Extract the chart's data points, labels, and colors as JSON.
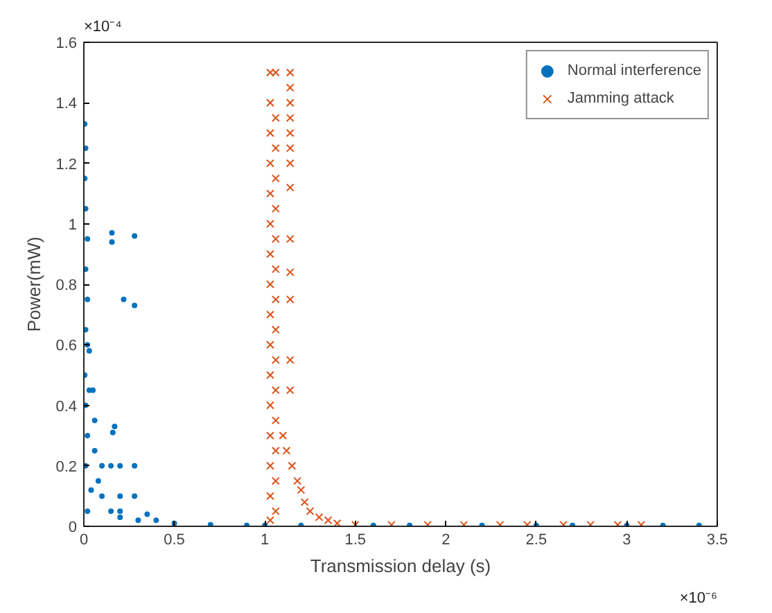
{
  "chart_data": {
    "type": "scatter",
    "xlabel": "Transmission delay (s)",
    "ylabel": "Power(mW)",
    "annotations": [
      "×10⁻⁶",
      "×10⁻⁴"
    ],
    "xlim": [
      0,
      3.5
    ],
    "ylim": [
      0,
      1.6
    ],
    "xticks": [
      0,
      0.5,
      1,
      1.5,
      2,
      2.5,
      3,
      3.5
    ],
    "yticks": [
      0,
      0.2,
      0.4,
      0.6,
      0.8,
      1,
      1.2,
      1.4,
      1.6
    ],
    "grid": false,
    "legend": "top right",
    "series": [
      {
        "name": "Normal interference",
        "color": "#0072bd",
        "marker": "circle",
        "x": [
          0.005,
          0.01,
          0.005,
          0.01,
          0.02,
          0.01,
          0.02,
          0.01,
          0.02,
          0.03,
          0.005,
          0.01,
          0.03,
          0.05,
          0.06,
          0.06,
          0.08,
          0.1,
          0.15,
          0.2,
          0.3,
          0.5,
          0.7,
          0.9,
          0.02,
          0.01,
          0.04,
          0.02,
          0.155,
          0.155,
          0.28,
          0.22,
          0.28,
          0.1,
          0.15,
          0.2,
          0.28,
          0.16,
          0.17,
          0.2,
          0.28,
          0.2,
          0.35,
          0.4,
          1.0,
          1.2,
          1.6,
          1.8,
          2.2,
          2.5,
          2.7,
          3.0,
          3.2,
          3.4
        ],
        "values": [
          1.33,
          1.25,
          1.15,
          1.05,
          0.95,
          0.85,
          0.75,
          0.65,
          0.6,
          0.58,
          0.5,
          0.4,
          0.45,
          0.45,
          0.35,
          0.25,
          0.15,
          0.1,
          0.05,
          0.03,
          0.02,
          0.01,
          0.005,
          0.003,
          0.3,
          0.2,
          0.12,
          0.05,
          0.97,
          0.94,
          0.96,
          0.75,
          0.73,
          0.2,
          0.2,
          0.2,
          0.2,
          0.31,
          0.33,
          0.1,
          0.1,
          0.05,
          0.04,
          0.02,
          0.003,
          0.003,
          0.003,
          0.003,
          0.003,
          0.003,
          0.003,
          0.003,
          0.003,
          0.003
        ]
      },
      {
        "name": "Jamming attack",
        "color": "#d95319",
        "marker": "cross",
        "x": [
          1.03,
          1.03,
          1.03,
          1.03,
          1.03,
          1.03,
          1.03,
          1.03,
          1.03,
          1.03,
          1.03,
          1.03,
          1.03,
          1.03,
          1.03,
          1.03,
          1.06,
          1.06,
          1.06,
          1.06,
          1.06,
          1.06,
          1.06,
          1.06,
          1.06,
          1.06,
          1.06,
          1.06,
          1.06,
          1.06,
          1.06,
          1.14,
          1.14,
          1.14,
          1.14,
          1.14,
          1.14,
          1.14,
          1.14,
          1.14,
          1.14,
          1.14,
          1.14,
          1.14,
          1.1,
          1.12,
          1.15,
          1.18,
          1.2,
          1.22,
          1.25,
          1.3,
          1.35,
          1.4,
          1.5,
          1.7,
          1.9,
          2.1,
          2.3,
          2.45,
          2.65,
          2.8,
          2.95,
          3.08
        ],
        "values": [
          1.5,
          1.4,
          1.3,
          1.2,
          1.1,
          1.0,
          0.9,
          0.8,
          0.7,
          0.6,
          0.5,
          0.4,
          0.3,
          0.2,
          0.1,
          0.02,
          1.5,
          1.35,
          1.25,
          1.15,
          1.05,
          0.95,
          0.85,
          0.75,
          0.65,
          0.55,
          0.45,
          0.35,
          0.25,
          0.15,
          0.05,
          1.5,
          1.45,
          1.4,
          1.35,
          1.3,
          1.25,
          1.2,
          1.12,
          0.95,
          0.84,
          0.75,
          0.55,
          0.45,
          0.3,
          0.25,
          0.2,
          0.15,
          0.12,
          0.08,
          0.05,
          0.03,
          0.02,
          0.01,
          0.005,
          0.005,
          0.005,
          0.005,
          0.005,
          0.005,
          0.005,
          0.005,
          0.005,
          0.005
        ]
      }
    ]
  }
}
